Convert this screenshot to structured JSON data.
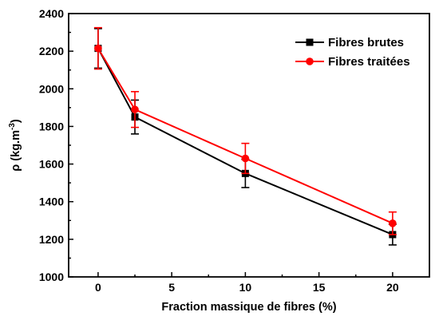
{
  "chart_data": {
    "type": "line",
    "xlabel": "Fraction massique de fibres (%)",
    "ylabel": {
      "base": "ρ (kg.m",
      "sup": "-3",
      "close": ")"
    },
    "xlim": [
      -2,
      22.5
    ],
    "ylim": [
      1000,
      2400
    ],
    "xticks": [
      0,
      5,
      10,
      15,
      20
    ],
    "yticks": [
      1000,
      1200,
      1400,
      1600,
      1800,
      2000,
      2200,
      2400
    ],
    "grid": false,
    "legend_position": "top-right",
    "series": [
      {
        "name": "Fibres brutes",
        "color": "#000000",
        "marker": "square",
        "x": [
          0,
          2.5,
          10,
          20
        ],
        "y": [
          2215,
          1850,
          1550,
          1225
        ],
        "err": [
          105,
          90,
          75,
          55
        ]
      },
      {
        "name": "Fibres traitées",
        "color": "#ff0000",
        "marker": "circle",
        "x": [
          0,
          2.5,
          10,
          20
        ],
        "y": [
          2215,
          1890,
          1630,
          1285
        ],
        "err": [
          110,
          95,
          80,
          60
        ]
      }
    ]
  }
}
